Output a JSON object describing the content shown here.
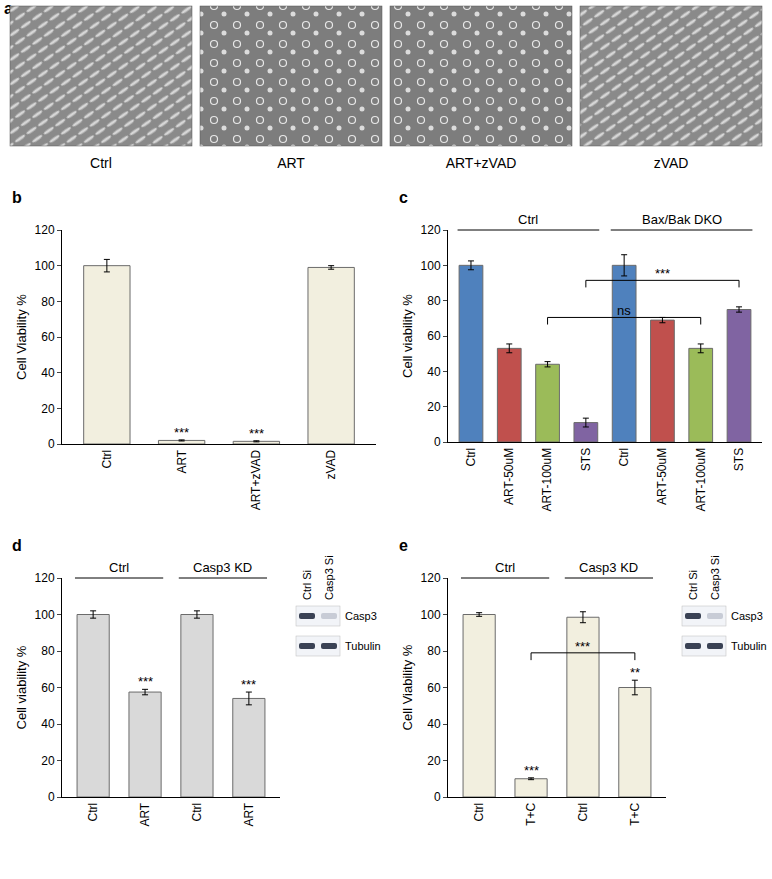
{
  "panel_a": {
    "panel": "a",
    "images": [
      "Ctrl",
      "ART",
      "ART+zVAD",
      "zVAD"
    ]
  },
  "chart_data": [
    {
      "panel": "b",
      "type": "bar",
      "categories": [
        "Ctrl",
        "ART",
        "ART+zVAD",
        "zVAD"
      ],
      "values": [
        100,
        2,
        1.5,
        99
      ],
      "error": [
        3.5,
        0.3,
        0.3,
        1
      ],
      "color": "#f2efdf",
      "y_label": "Cell Viability %",
      "ylim": [
        0,
        120
      ],
      "yticks": [
        0,
        20,
        40,
        60,
        80,
        100,
        120
      ],
      "grid": false,
      "significance": [
        {
          "index": 1,
          "label": "***"
        },
        {
          "index": 2,
          "label": "***"
        }
      ]
    },
    {
      "panel": "c",
      "type": "bar",
      "categories": [
        "Ctrl",
        "ART-50uM",
        "ART-100uM",
        "STS",
        "Ctrl",
        "ART-50uM",
        "ART-100uM",
        "STS"
      ],
      "values": [
        100,
        53,
        44,
        11,
        100,
        69,
        53,
        75
      ],
      "error": [
        2.5,
        2.5,
        1.5,
        2.5,
        6,
        1.5,
        2.5,
        1.5
      ],
      "colors": [
        "#4f81bd",
        "#c0504d",
        "#9bbb59",
        "#8064a2",
        "#4f81bd",
        "#c0504d",
        "#9bbb59",
        "#8064a2"
      ],
      "y_label": "Cell viability %",
      "ylim": [
        0,
        120
      ],
      "yticks": [
        0,
        20,
        40,
        60,
        80,
        100,
        120
      ],
      "grid": false,
      "groups": [
        {
          "label": "Ctrl",
          "from": 0,
          "to": 3
        },
        {
          "label": "Bax/Bak DKO",
          "from": 4,
          "to": 7
        }
      ],
      "brackets": [
        {
          "from": 2,
          "to": 6,
          "label": "ns"
        },
        {
          "from": 3,
          "to": 7,
          "label": "***"
        }
      ]
    },
    {
      "panel": "d",
      "type": "bar",
      "categories": [
        "Ctrl",
        "ART",
        "Ctrl",
        "ART"
      ],
      "values": [
        100,
        57.5,
        100,
        54
      ],
      "error": [
        2,
        1.5,
        2,
        3.5
      ],
      "color": "#d9d9d9",
      "y_label": "Cell viability %",
      "ylim": [
        0,
        120
      ],
      "yticks": [
        0,
        20,
        40,
        60,
        80,
        100,
        120
      ],
      "grid": false,
      "groups": [
        {
          "label": "Ctrl",
          "from": 0,
          "to": 1
        },
        {
          "label": "Casp3 KD",
          "from": 2,
          "to": 3
        }
      ],
      "significance": [
        {
          "index": 1,
          "label": "***"
        },
        {
          "index": 3,
          "label": "***"
        }
      ],
      "blot": {
        "lanes": [
          "Ctrl Si",
          "Casp3 Si"
        ],
        "rows": [
          "Casp3",
          "Tubulin"
        ]
      }
    },
    {
      "panel": "e",
      "type": "bar",
      "categories": [
        "Ctrl",
        "T+C",
        "Ctrl",
        "T+C"
      ],
      "values": [
        100,
        10,
        98.5,
        60
      ],
      "error": [
        1,
        0.5,
        3,
        4
      ],
      "color": "#f2efdf",
      "y_label": "Cell Viability %",
      "ylim": [
        0,
        120
      ],
      "yticks": [
        0,
        20,
        40,
        60,
        80,
        100,
        120
      ],
      "grid": false,
      "groups": [
        {
          "label": "Ctrl",
          "from": 0,
          "to": 1
        },
        {
          "label": "Casp3 KD",
          "from": 2,
          "to": 3
        }
      ],
      "significance": [
        {
          "index": 1,
          "label": "***"
        },
        {
          "index": 3,
          "label": "**"
        }
      ],
      "brackets": [
        {
          "from": 1,
          "to": 3,
          "label": "***"
        }
      ],
      "blot": {
        "lanes": [
          "Ctrl Si",
          "Casp3 Si"
        ],
        "rows": [
          "Casp3",
          "Tubulin"
        ]
      }
    }
  ]
}
